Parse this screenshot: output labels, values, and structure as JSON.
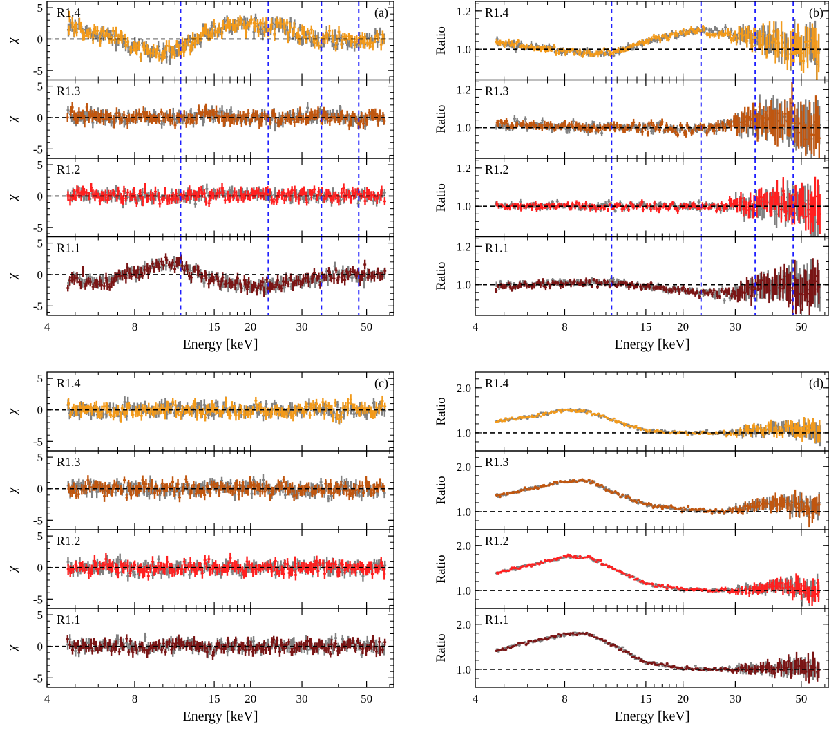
{
  "chart_data": [
    {
      "id": "a",
      "type": "scatter",
      "panel_label": "(a)",
      "xlabel": "Energy [keV]",
      "ylabel": "χ",
      "xscale": "log",
      "xlim": [
        4,
        62
      ],
      "xticks": [
        4,
        8,
        15,
        20,
        30,
        50
      ],
      "xtick_labels": [
        "4",
        "8",
        "15",
        "20",
        "30",
        "50"
      ],
      "ylim": [
        -6.5,
        6
      ],
      "yticks": [
        -5,
        0,
        5
      ],
      "ytick_labels": [
        "-5",
        "0",
        "5"
      ],
      "reference_line": 0,
      "vlines": [
        11.5,
        23,
        35,
        47
      ],
      "series_colors": {
        "grey": "#808080",
        "R1.4": "#f29a1b",
        "R1.3": "#c0560f",
        "R1.2": "#ff2020",
        "R1.1": "#7a1515"
      },
      "subplots": [
        {
          "label": "R1.4",
          "trend": [
            [
              4.6,
              2.2
            ],
            [
              6,
              1.0
            ],
            [
              8,
              -1.2
            ],
            [
              10,
              -2.4
            ],
            [
              11.5,
              -1.5
            ],
            [
              14,
              1.0
            ],
            [
              20,
              2.5
            ],
            [
              25,
              1.8
            ],
            [
              35,
              -0.2
            ],
            [
              47,
              -0.3
            ],
            [
              60,
              0.2
            ]
          ],
          "noise": 1.3
        },
        {
          "label": "R1.3",
          "trend": [
            [
              4.6,
              0.2
            ],
            [
              10,
              -0.2
            ],
            [
              15,
              0.3
            ],
            [
              25,
              -0.2
            ],
            [
              35,
              0.4
            ],
            [
              47,
              -0.3
            ],
            [
              60,
              0
            ]
          ],
          "noise": 1.2
        },
        {
          "label": "R1.2",
          "trend": [
            [
              4.6,
              0.2
            ],
            [
              10,
              0
            ],
            [
              20,
              0.2
            ],
            [
              35,
              0.1
            ],
            [
              60,
              0
            ]
          ],
          "noise": 1.1
        },
        {
          "label": "R1.1",
          "trend": [
            [
              4.6,
              -1.0
            ],
            [
              6,
              -1.3
            ],
            [
              8,
              0.2
            ],
            [
              10,
              2.0
            ],
            [
              11.5,
              1.8
            ],
            [
              14,
              -0.5
            ],
            [
              18,
              -1.5
            ],
            [
              22,
              -2.0
            ],
            [
              30,
              -1.0
            ],
            [
              40,
              -0.2
            ],
            [
              60,
              0
            ]
          ],
          "noise": 1.1
        }
      ]
    },
    {
      "id": "b",
      "type": "scatter",
      "panel_label": "(b)",
      "xlabel": "Energy [keV]",
      "ylabel": "Ratio",
      "xscale": "log",
      "xlim": [
        4,
        62
      ],
      "xticks": [
        4,
        8,
        15,
        20,
        30,
        50
      ],
      "xtick_labels": [
        "4",
        "8",
        "15",
        "20",
        "30",
        "50"
      ],
      "ylim": [
        0.84,
        1.25
      ],
      "yticks": [
        1.0,
        1.2
      ],
      "ytick_labels": [
        "1.0",
        "1.2"
      ],
      "reference_line": 1.0,
      "vlines": [
        11.5,
        23,
        35,
        47
      ],
      "series_colors": {
        "grey": "#808080",
        "R1.4": "#f29a1b",
        "R1.3": "#c0560f",
        "R1.2": "#ff2020",
        "R1.1": "#7a1515"
      },
      "subplots": [
        {
          "label": "R1.4",
          "trend": [
            [
              4.6,
              1.04
            ],
            [
              7,
              1.0
            ],
            [
              10,
              0.98
            ],
            [
              11.5,
              0.98
            ],
            [
              15,
              1.04
            ],
            [
              22,
              1.1
            ],
            [
              28,
              1.08
            ],
            [
              35,
              1.05
            ],
            [
              50,
              1.0
            ],
            [
              60,
              1.0
            ]
          ],
          "noise": 0.02
        },
        {
          "label": "R1.3",
          "trend": [
            [
              4.6,
              1.02
            ],
            [
              10,
              1.0
            ],
            [
              15,
              1.0
            ],
            [
              22,
              0.99
            ],
            [
              30,
              1.02
            ],
            [
              40,
              1.05
            ],
            [
              55,
              1.0
            ]
          ],
          "noise": 0.025
        },
        {
          "label": "R1.2",
          "trend": [
            [
              4.6,
              1.0
            ],
            [
              15,
              1.0
            ],
            [
              25,
              1.0
            ],
            [
              40,
              1.02
            ],
            [
              55,
              1.0
            ]
          ],
          "noise": 0.02
        },
        {
          "label": "R1.1",
          "trend": [
            [
              4.6,
              0.99
            ],
            [
              8,
              1.01
            ],
            [
              11.5,
              1.01
            ],
            [
              15,
              0.99
            ],
            [
              22,
              0.96
            ],
            [
              30,
              0.95
            ],
            [
              40,
              1.0
            ],
            [
              55,
              0.98
            ]
          ],
          "noise": 0.02
        }
      ]
    },
    {
      "id": "c",
      "type": "scatter",
      "panel_label": "(c)",
      "xlabel": "Energy [keV]",
      "ylabel": "χ",
      "xscale": "log",
      "xlim": [
        4,
        62
      ],
      "xticks": [
        4,
        8,
        15,
        20,
        30,
        50
      ],
      "xtick_labels": [
        "4",
        "8",
        "15",
        "20",
        "30",
        "50"
      ],
      "ylim": [
        -6.5,
        6
      ],
      "yticks": [
        -5,
        0,
        5
      ],
      "ytick_labels": [
        "-5",
        "0",
        "5"
      ],
      "reference_line": 0,
      "vlines": [],
      "series_colors": {
        "grey": "#808080",
        "R1.4": "#f29a1b",
        "R1.3": "#c0560f",
        "R1.2": "#ff2020",
        "R1.1": "#7a1515"
      },
      "subplots": [
        {
          "label": "R1.4",
          "trend": [
            [
              4.6,
              0
            ],
            [
              60,
              0
            ]
          ],
          "noise": 1.2
        },
        {
          "label": "R1.3",
          "trend": [
            [
              4.6,
              0
            ],
            [
              60,
              0
            ]
          ],
          "noise": 1.2
        },
        {
          "label": "R1.2",
          "trend": [
            [
              4.6,
              0
            ],
            [
              60,
              0
            ]
          ],
          "noise": 1.2
        },
        {
          "label": "R1.1",
          "trend": [
            [
              4.6,
              0
            ],
            [
              60,
              0
            ]
          ],
          "noise": 1.1
        }
      ]
    },
    {
      "id": "d",
      "type": "scatter",
      "panel_label": "(d)",
      "xlabel": "Energy [keV]",
      "ylabel": "Ratio",
      "xscale": "log",
      "xlim": [
        4,
        62
      ],
      "xticks": [
        4,
        8,
        15,
        20,
        30,
        50
      ],
      "xtick_labels": [
        "4",
        "8",
        "15",
        "20",
        "30",
        "50"
      ],
      "ylim": [
        0.6,
        2.35
      ],
      "yticks": [
        1.0,
        2.0
      ],
      "ytick_labels": [
        "1.0",
        "2.0"
      ],
      "reference_line": 1.0,
      "vlines": [],
      "series_colors": {
        "grey": "#808080",
        "R1.4": "#f29a1b",
        "R1.3": "#c0560f",
        "R1.2": "#ff2020",
        "R1.1": "#7a1515"
      },
      "subplots": [
        {
          "label": "R1.4",
          "trend": [
            [
              4.6,
              1.25
            ],
            [
              6,
              1.35
            ],
            [
              8,
              1.5
            ],
            [
              9.5,
              1.48
            ],
            [
              12,
              1.25
            ],
            [
              15,
              1.05
            ],
            [
              20,
              1.0
            ],
            [
              30,
              1.0
            ],
            [
              40,
              1.1
            ],
            [
              55,
              1.05
            ]
          ],
          "noise": 0.04
        },
        {
          "label": "R1.3",
          "trend": [
            [
              4.6,
              1.33
            ],
            [
              6,
              1.5
            ],
            [
              8,
              1.68
            ],
            [
              9.5,
              1.7
            ],
            [
              12,
              1.4
            ],
            [
              15,
              1.15
            ],
            [
              20,
              1.05
            ],
            [
              28,
              1.0
            ],
            [
              40,
              1.2
            ],
            [
              55,
              1.1
            ]
          ],
          "noise": 0.045
        },
        {
          "label": "R1.2",
          "trend": [
            [
              4.6,
              1.38
            ],
            [
              6,
              1.55
            ],
            [
              8,
              1.75
            ],
            [
              9.5,
              1.74
            ],
            [
              12,
              1.45
            ],
            [
              15,
              1.15
            ],
            [
              20,
              1.02
            ],
            [
              30,
              1.0
            ],
            [
              45,
              1.1
            ],
            [
              58,
              0.95
            ]
          ],
          "noise": 0.04
        },
        {
          "label": "R1.1",
          "trend": [
            [
              4.6,
              1.4
            ],
            [
              6,
              1.6
            ],
            [
              8,
              1.78
            ],
            [
              9.5,
              1.8
            ],
            [
              12,
              1.5
            ],
            [
              15,
              1.15
            ],
            [
              20,
              1.02
            ],
            [
              30,
              1.0
            ],
            [
              45,
              1.05
            ],
            [
              58,
              1.0
            ]
          ],
          "noise": 0.04
        }
      ]
    }
  ]
}
